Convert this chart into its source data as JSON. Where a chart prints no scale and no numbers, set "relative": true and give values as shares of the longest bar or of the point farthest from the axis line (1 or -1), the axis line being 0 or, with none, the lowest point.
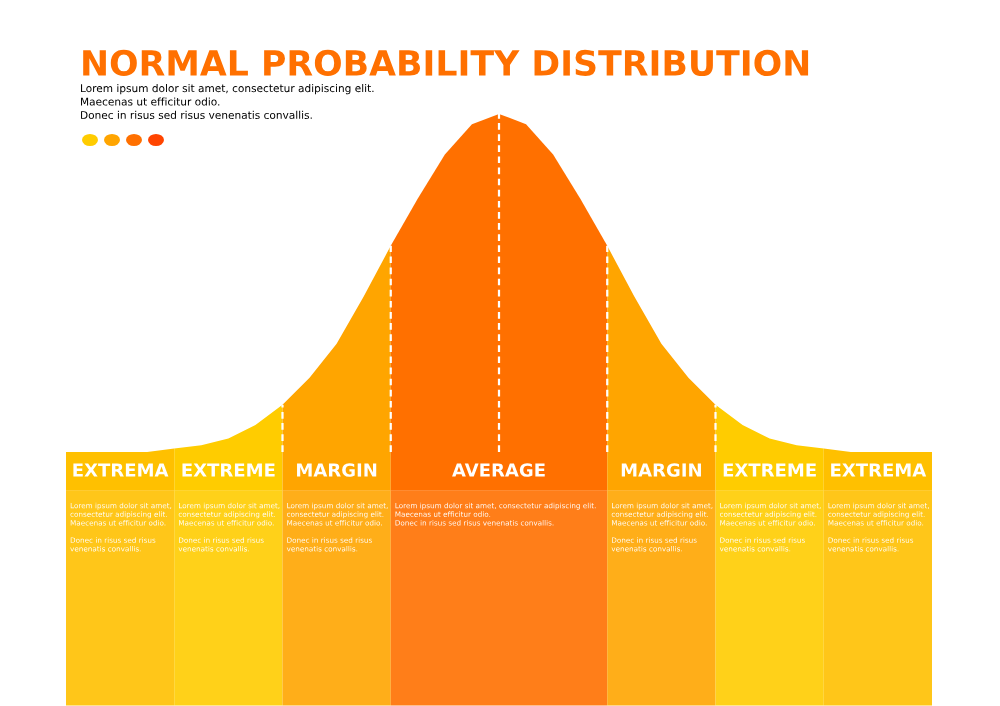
{
  "chart_data": {
    "type": "area",
    "title": "NORMAL PROBABILITY DISTRIBUTION",
    "relative": true,
    "categories": [
      null,
      null,
      null,
      null,
      null,
      null,
      null,
      null,
      null,
      null,
      null,
      null,
      null,
      null,
      null,
      null,
      null,
      null,
      null,
      null,
      null,
      null,
      null,
      null,
      null,
      null,
      null,
      null,
      null,
      null,
      null,
      null,
      null
    ],
    "series": [
      {
        "color": "#ffc000",
        "values": [
          0,
          0,
          0,
          0,
          0.01,
          null,
          null,
          null,
          null,
          null,
          null,
          null,
          null,
          null,
          null,
          null,
          null,
          null,
          null,
          null,
          null,
          null,
          null,
          null,
          null,
          null,
          null,
          null,
          null,
          null,
          null,
          null,
          null
        ]
      },
      {
        "color": "#ffcc00",
        "values": [
          null,
          null,
          null,
          null,
          0.01,
          0.02,
          0.04,
          0.08,
          0.14,
          null,
          null,
          null,
          null,
          null,
          null,
          null,
          null,
          null,
          null,
          null,
          null,
          null,
          null,
          null,
          null,
          null,
          null,
          null,
          null,
          null,
          null,
          null,
          null
        ]
      },
      {
        "color": "#ffa500",
        "values": [
          null,
          null,
          null,
          null,
          null,
          null,
          null,
          null,
          0.14,
          0.22,
          0.32,
          0.46,
          0.61,
          null,
          null,
          null,
          null,
          null,
          null,
          null,
          null,
          null,
          null,
          null,
          null,
          null,
          null,
          null,
          null,
          null,
          null,
          null,
          null
        ]
      },
      {
        "color": "#ff7000",
        "values": [
          null,
          null,
          null,
          null,
          null,
          null,
          null,
          null,
          null,
          null,
          null,
          null,
          0.61,
          0.75,
          0.88,
          0.97,
          1,
          0.97,
          0.88,
          0.75,
          0.61,
          null,
          null,
          null,
          null,
          null,
          null,
          null,
          null,
          null,
          null,
          null,
          null
        ]
      },
      {
        "color": "#ffa500",
        "values": [
          null,
          null,
          null,
          null,
          null,
          null,
          null,
          null,
          null,
          null,
          null,
          null,
          null,
          null,
          null,
          null,
          null,
          null,
          null,
          null,
          0.61,
          0.46,
          0.32,
          0.22,
          0.14,
          null,
          null,
          null,
          null,
          null,
          null,
          null,
          null
        ]
      },
      {
        "color": "#ffcc00",
        "values": [
          null,
          null,
          null,
          null,
          null,
          null,
          null,
          null,
          null,
          null,
          null,
          null,
          null,
          null,
          null,
          null,
          null,
          null,
          null,
          null,
          null,
          null,
          null,
          null,
          0.14,
          0.08,
          0.04,
          0.02,
          0.01,
          null,
          null,
          null,
          null
        ]
      },
      {
        "color": "#ffc000",
        "values": [
          null,
          null,
          null,
          null,
          null,
          null,
          null,
          null,
          null,
          null,
          null,
          null,
          null,
          null,
          null,
          null,
          null,
          null,
          null,
          null,
          null,
          null,
          null,
          null,
          null,
          null,
          null,
          null,
          0.01,
          0,
          0,
          0,
          0
        ]
      }
    ],
    "annotations": [
      "Lorem ipsum dolor sit amet, consectetur adipiscing elit.\nMaecenas ut efficitur odio.\nDonec in risus sed risus venenatis convallis.",
      "EXTREMA",
      "EXTREME",
      "MARGIN",
      "AVERAGE",
      "MARGIN",
      "EXTREME",
      "EXTREMA",
      "Lorem ipsum dolor sit amet,\nconsectetur adipiscing elit.\nMaecenas ut efficitur odio.\n\nDonec in risus sed risus\nvenenatis convallis.",
      "Lorem ipsum dolor sit amet,\nconsectetur adipiscing elit.\nMaecenas ut efficitur odio.\n\nDonec in risus sed risus\nvenenatis convallis.",
      "Lorem ipsum dolor sit amet,\nconsectetur adipiscing elit.\nMaecenas ut efficitur odio.\n\nDonec in risus sed risus\nvenenatis convallis.",
      "Lorem ipsum dolor sit amet, consectetur adipiscing elit.\nMaecenas ut efficitur odio.\nDonec in risus sed risus venenatis convallis.",
      "Lorem ipsum dolor sit amet,\nconsectetur adipiscing elit.\nMaecenas ut efficitur odio.\n\nDonec in risus sed risus\nvenenatis convallis.",
      "Lorem ipsum dolor sit amet,\nconsectetur adipiscing elit.\nMaecenas ut efficitur odio.\n\nDonec in risus sed risus\nvenenatis convallis.",
      "Lorem ipsum dolor sit amet,\nconsectetur adipiscing elit.\nMaecenas ut efficitur odio.\n\nDonec in risus sed risus\nvenenatis convallis."
    ]
  }
}
